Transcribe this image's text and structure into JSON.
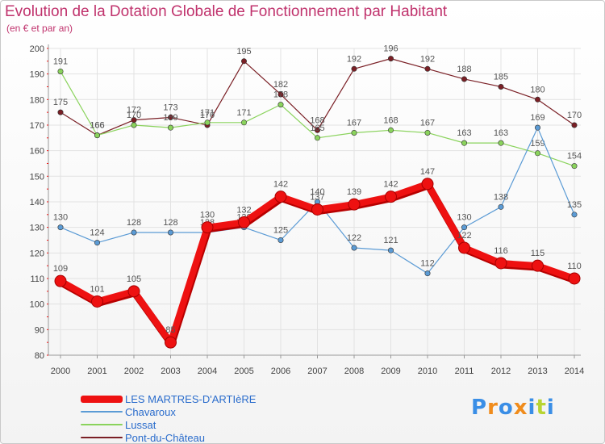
{
  "chart_data": {
    "type": "line",
    "title": "Evolution de la Dotation Globale de Fonctionnement par Habitant",
    "subtitle": "(en € et par an)",
    "xlabel": "",
    "ylabel": "",
    "ylim": [
      80,
      200
    ],
    "yticks": [
      80,
      90,
      100,
      110,
      120,
      130,
      140,
      150,
      160,
      170,
      180,
      190,
      200
    ],
    "categories": [
      "2000",
      "2001",
      "2002",
      "2003",
      "2004",
      "2005",
      "2006",
      "2007",
      "2008",
      "2009",
      "2010",
      "2011",
      "2012",
      "2013",
      "2014"
    ],
    "grid": true,
    "legend_position": "bottom-left",
    "series": [
      {
        "name": "Pont-du-Château",
        "color": "#7a1f25",
        "values": [
          175,
          166,
          172,
          173,
          170,
          195,
          182,
          168,
          192,
          196,
          192,
          188,
          185,
          180,
          170
        ]
      },
      {
        "name": "Lussat",
        "color": "#8ad35c",
        "values": [
          191,
          166,
          170,
          169,
          171,
          171,
          178,
          165,
          167,
          168,
          167,
          163,
          163,
          159,
          154
        ]
      },
      {
        "name": "Chavaroux",
        "color": "#5b9bd5",
        "values": [
          130,
          124,
          128,
          128,
          128,
          130,
          125,
          140,
          122,
          121,
          112,
          130,
          138,
          169,
          135
        ]
      },
      {
        "name": "LES MARTRES-D'ARTIèRE",
        "color": "#ee1111",
        "values": [
          109,
          101,
          105,
          85,
          130,
          132,
          142,
          137,
          139,
          142,
          147,
          122,
          116,
          115,
          110
        ]
      }
    ]
  },
  "legend": {
    "items": [
      {
        "label": "LES MARTRES-D'ARTIèRE",
        "color": "#ee1111"
      },
      {
        "label": "Chavaroux",
        "color": "#5b9bd5"
      },
      {
        "label": "Lussat",
        "color": "#8ad35c"
      },
      {
        "label": "Pont-du-Château",
        "color": "#7a1f25"
      }
    ]
  },
  "logo": {
    "text": "Proxiti",
    "colors": [
      "#3a8ee6",
      "#f08c1c",
      "#3a8ee6",
      "#f08c1c",
      "#3a8ee6",
      "#b8d432",
      "#3a8ee6"
    ]
  }
}
